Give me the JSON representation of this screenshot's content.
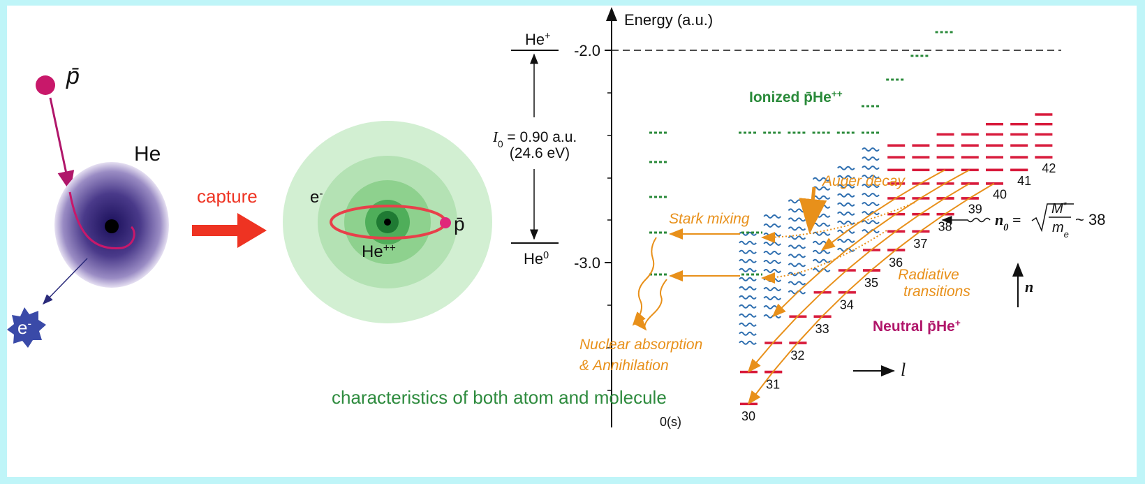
{
  "left": {
    "antiproton": "p̄",
    "atom": "He",
    "electron": {
      "base": "e",
      "sup": "-"
    },
    "capture": "capture",
    "cloud_electron": {
      "base": "e",
      "sup": "-"
    },
    "orbit_antiproton": "p̄",
    "nucleus": {
      "base": "He",
      "sup": "++"
    },
    "caption": "characteristics of both atom and molecule"
  },
  "right": {
    "axis_label": "Energy (a.u.)",
    "ticks": [
      "-2.0",
      "-3.0"
    ],
    "origin_label": "0(s)",
    "he_plus": {
      "base": "He",
      "sup": "+"
    },
    "he_zero": {
      "base": "He",
      "sup": "0"
    },
    "ionization": {
      "symbol": "I",
      "sub": "0",
      "value": " = 0.90 a.u.",
      "ev": "(24.6 eV)"
    },
    "ionized": {
      "text": "Ionized p̄He",
      "sup": "++"
    },
    "neutral": {
      "text": "Neutral p̄He",
      "sup": "+"
    },
    "auger": "Auger decay",
    "stark": "Stark mixing",
    "radiative": [
      "Radiative",
      "transitions"
    ],
    "absorption": [
      "Nuclear absorption",
      "&  Annihilation"
    ],
    "n0": {
      "symbol": "n",
      "sub": "0",
      "eq": " =",
      "num": "M",
      "num_sup": "*",
      "den": "m",
      "den_sub": "e",
      "approx": "~ 38"
    },
    "n_axis": "n",
    "l_axis": "l",
    "levels": [
      30,
      31,
      32,
      33,
      34,
      35,
      36,
      37,
      38,
      39,
      40,
      41,
      42
    ]
  }
}
